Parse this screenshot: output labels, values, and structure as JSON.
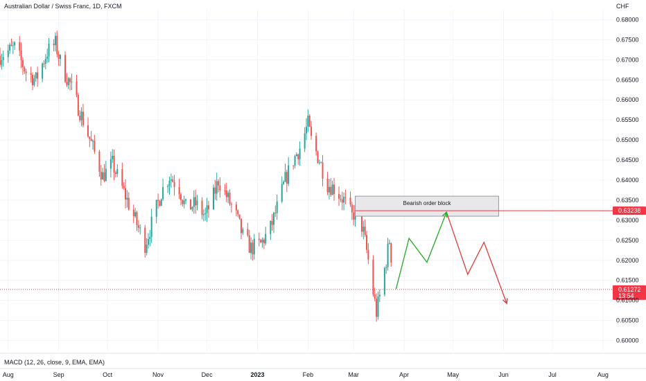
{
  "header": {
    "symbol_title": "Australian Dollar / Swiss Franc, 1D, FXCM",
    "currency": "CHF"
  },
  "indicator": {
    "label": "MACD (12, 26, close, 9, EMA, EMA)"
  },
  "colors": {
    "up": "#26a69a",
    "down": "#ef5350",
    "projection_up": "#22ab22",
    "projection_down": "#e53935",
    "level_line": "#f23645",
    "grid": "#f0f3fa",
    "box_fill": "#e8e8ea",
    "box_stroke": "#9598a1"
  },
  "chart_data": {
    "type": "candlestick",
    "y_axis": {
      "ylim": [
        0.5975,
        0.6825
      ],
      "ticks": [
        "0.68000",
        "0.67500",
        "0.67000",
        "0.66500",
        "0.66000",
        "0.65500",
        "0.65000",
        "0.64500",
        "0.64000",
        "0.63500",
        "0.63000",
        "0.62500",
        "0.62000",
        "0.61500",
        "0.61000",
        "0.60500",
        "0.60000"
      ],
      "tick_values": [
        0.68,
        0.675,
        0.67,
        0.665,
        0.66,
        0.655,
        0.65,
        0.645,
        0.64,
        0.635,
        0.63,
        0.625,
        0.62,
        0.615,
        0.61,
        0.605,
        0.6
      ]
    },
    "x_axis": {
      "labels": [
        "Aug",
        "Sep",
        "Oct",
        "Nov",
        "Dec",
        "2023",
        "Feb",
        "Mar",
        "Apr",
        "May",
        "Jun",
        "Jul",
        "Aug"
      ],
      "label_dates": [
        "2022-08-01",
        "2022-09-01",
        "2022-10-01",
        "2022-11-01",
        "2022-12-01",
        "2023-01-01",
        "2023-02-01",
        "2023-03-01",
        "2023-04-01",
        "2023-05-01",
        "2023-06-01",
        "2023-07-01",
        "2023-08-01"
      ],
      "bold": [
        "2023"
      ],
      "range": [
        "2022-07-27",
        "2023-08-07"
      ]
    },
    "price_path": {
      "description_points": [
        [
          "2022-07-27",
          0.671
        ],
        [
          "2022-08-05",
          0.673
        ],
        [
          "2022-08-12",
          0.667
        ],
        [
          "2022-08-18",
          0.665
        ],
        [
          "2022-08-25",
          0.672
        ],
        [
          "2022-08-30",
          0.674
        ],
        [
          "2022-09-03",
          0.668
        ],
        [
          "2022-09-08",
          0.664
        ],
        [
          "2022-09-15",
          0.656
        ],
        [
          "2022-09-22",
          0.648
        ],
        [
          "2022-09-28",
          0.641
        ],
        [
          "2022-10-04",
          0.644
        ],
        [
          "2022-10-10",
          0.638
        ],
        [
          "2022-10-14",
          0.634
        ],
        [
          "2022-10-19",
          0.629
        ],
        [
          "2022-10-24",
          0.624
        ],
        [
          "2022-10-28",
          0.629
        ],
        [
          "2022-11-03",
          0.637
        ],
        [
          "2022-11-08",
          0.641
        ],
        [
          "2022-11-14",
          0.638
        ],
        [
          "2022-11-18",
          0.633
        ],
        [
          "2022-11-24",
          0.634
        ],
        [
          "2022-11-30",
          0.631
        ],
        [
          "2022-12-05",
          0.636
        ],
        [
          "2022-12-08",
          0.64
        ],
        [
          "2022-12-13",
          0.636
        ],
        [
          "2022-12-19",
          0.631
        ],
        [
          "2022-12-23",
          0.626
        ],
        [
          "2022-12-28",
          0.623
        ],
        [
          "2023-01-03",
          0.624
        ],
        [
          "2023-01-09",
          0.628
        ],
        [
          "2023-01-13",
          0.633
        ],
        [
          "2023-01-18",
          0.64
        ],
        [
          "2023-01-23",
          0.645
        ],
        [
          "2023-01-27",
          0.648
        ],
        [
          "2023-02-01",
          0.654
        ],
        [
          "2023-02-03",
          0.65
        ],
        [
          "2023-02-08",
          0.645
        ],
        [
          "2023-02-13",
          0.639
        ],
        [
          "2023-02-17",
          0.638
        ],
        [
          "2023-02-23",
          0.635
        ],
        [
          "2023-02-28",
          0.631
        ],
        [
          "2023-03-03",
          0.633
        ],
        [
          "2023-03-07",
          0.627
        ],
        [
          "2023-03-10",
          0.62
        ],
        [
          "2023-03-13",
          0.612
        ],
        [
          "2023-03-15",
          0.607
        ],
        [
          "2023-03-17",
          0.611
        ],
        [
          "2023-03-21",
          0.62
        ],
        [
          "2023-03-23",
          0.625
        ],
        [
          "2023-03-26",
          0.613
        ]
      ],
      "ohlc_estimated": true
    },
    "last_price": {
      "label": "0.61272",
      "value": 0.61272,
      "countdown": "13:54"
    },
    "order_block": {
      "label": "Bearish order block",
      "top": 0.636,
      "bottom": 0.631,
      "start": "2023-03-02",
      "end": "2023-05-29"
    },
    "level_line": {
      "label": "0.63238",
      "value": 0.63238,
      "start": "2023-03-02"
    },
    "projection": {
      "up_segments": [
        [
          "2023-03-27",
          0.6128
        ],
        [
          "2023-04-04",
          0.6255
        ],
        [
          "2023-04-15",
          0.6195
        ],
        [
          "2023-04-27",
          0.632
        ]
      ],
      "down_segments": [
        [
          "2023-04-27",
          0.632
        ],
        [
          "2023-05-10",
          0.6165
        ],
        [
          "2023-05-20",
          0.6245
        ],
        [
          "2023-06-03",
          0.6092
        ]
      ]
    }
  }
}
